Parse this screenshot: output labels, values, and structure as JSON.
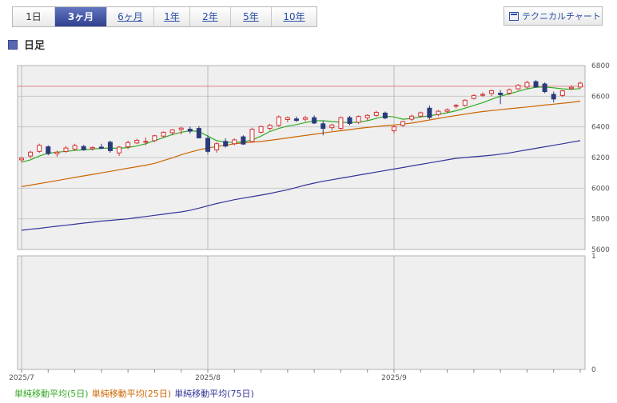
{
  "tabs": [
    {
      "label": "1日",
      "active": false,
      "link": false
    },
    {
      "label": "3ヶ月",
      "active": true,
      "link": false
    },
    {
      "label": "6ヶ月",
      "active": false,
      "link": true
    },
    {
      "label": "1年",
      "active": false,
      "link": true
    },
    {
      "label": "2年",
      "active": false,
      "link": true
    },
    {
      "label": "5年",
      "active": false,
      "link": true
    },
    {
      "label": "10年",
      "active": false,
      "link": true
    }
  ],
  "tech_button": {
    "label": "テクニカルチャート",
    "icon": "window-icon"
  },
  "section": {
    "title": "日足"
  },
  "legend": [
    {
      "label": "単純移動平均(5日)",
      "color": "#33aa22"
    },
    {
      "label": "単純移動平均(25日)",
      "color": "#cc6600"
    },
    {
      "label": "単純移動平均(75日)",
      "color": "#333399"
    }
  ],
  "colors": {
    "up": "#d23030",
    "down": "#2b3a7a",
    "ref_line": "#e08080",
    "grid": "#c8c8c8",
    "plot_bg": "#efefef"
  },
  "chart_data": {
    "type": "candlestick",
    "x_labels": [
      {
        "label": "2025/7",
        "index": 0
      },
      {
        "label": "2025/8",
        "index": 21
      },
      {
        "label": "2025/9",
        "index": 42
      }
    ],
    "price_panel": {
      "yticks": [
        5600,
        5800,
        6000,
        6200,
        6400,
        6600,
        6800
      ],
      "ylim": [
        5600,
        6800
      ],
      "reference_line": 6665,
      "candles": [
        [
          6185,
          6205,
          6170,
          6195
        ],
        [
          6210,
          6245,
          6195,
          6235
        ],
        [
          6240,
          6290,
          6230,
          6280
        ],
        [
          6270,
          6280,
          6215,
          6225
        ],
        [
          6225,
          6245,
          6205,
          6235
        ],
        [
          6240,
          6275,
          6230,
          6262
        ],
        [
          6255,
          6290,
          6245,
          6278
        ],
        [
          6272,
          6282,
          6245,
          6250
        ],
        [
          6258,
          6272,
          6245,
          6266
        ],
        [
          6268,
          6290,
          6255,
          6260
        ],
        [
          6300,
          6310,
          6232,
          6245
        ],
        [
          6230,
          6275,
          6210,
          6268
        ],
        [
          6270,
          6310,
          6255,
          6298
        ],
        [
          6295,
          6322,
          6288,
          6312
        ],
        [
          6300,
          6330,
          6280,
          6305
        ],
        [
          6310,
          6348,
          6300,
          6342
        ],
        [
          6340,
          6370,
          6330,
          6365
        ],
        [
          6362,
          6385,
          6345,
          6380
        ],
        [
          6382,
          6400,
          6350,
          6392
        ],
        [
          6385,
          6402,
          6355,
          6372
        ],
        [
          6390,
          6405,
          6325,
          6328
        ],
        [
          6325,
          6345,
          6225,
          6240
        ],
        [
          6250,
          6300,
          6232,
          6290
        ],
        [
          6305,
          6325,
          6265,
          6275
        ],
        [
          6290,
          6325,
          6280,
          6315
        ],
        [
          6335,
          6345,
          6282,
          6288
        ],
        [
          6305,
          6395,
          6298,
          6384
        ],
        [
          6365,
          6408,
          6358,
          6402
        ],
        [
          6390,
          6420,
          6378,
          6410
        ],
        [
          6410,
          6475,
          6400,
          6465
        ],
        [
          6448,
          6468,
          6430,
          6460
        ],
        [
          6452,
          6468,
          6432,
          6442
        ],
        [
          6450,
          6472,
          6435,
          6460
        ],
        [
          6460,
          6475,
          6418,
          6425
        ],
        [
          6420,
          6440,
          6345,
          6390
        ],
        [
          6395,
          6420,
          6375,
          6412
        ],
        [
          6390,
          6468,
          6380,
          6460
        ],
        [
          6460,
          6472,
          6410,
          6422
        ],
        [
          6430,
          6475,
          6418,
          6468
        ],
        [
          6460,
          6482,
          6440,
          6475
        ],
        [
          6475,
          6505,
          6465,
          6495
        ],
        [
          6490,
          6500,
          6450,
          6458
        ],
        [
          6375,
          6410,
          6358,
          6400
        ],
        [
          6410,
          6440,
          6400,
          6435
        ],
        [
          6450,
          6480,
          6438,
          6470
        ],
        [
          6470,
          6500,
          6460,
          6492
        ],
        [
          6522,
          6540,
          6450,
          6462
        ],
        [
          6480,
          6510,
          6470,
          6502
        ],
        [
          6502,
          6520,
          6490,
          6512
        ],
        [
          6535,
          6550,
          6520,
          6540
        ],
        [
          6540,
          6580,
          6532,
          6574
        ],
        [
          6585,
          6612,
          6578,
          6605
        ],
        [
          6606,
          6625,
          6595,
          6612
        ],
        [
          6618,
          6642,
          6600,
          6636
        ],
        [
          6620,
          6640,
          6548,
          6610
        ],
        [
          6620,
          6650,
          6610,
          6642
        ],
        [
          6648,
          6680,
          6640,
          6671
        ],
        [
          6660,
          6700,
          6650,
          6690
        ],
        [
          6695,
          6705,
          6655,
          6660
        ],
        [
          6680,
          6690,
          6620,
          6630
        ],
        [
          6612,
          6630,
          6560,
          6582
        ],
        [
          6605,
          6640,
          6595,
          6635
        ],
        [
          6650,
          6672,
          6640,
          6658
        ],
        [
          6660,
          6695,
          6648,
          6685
        ]
      ],
      "ma5": [
        6170,
        6185,
        6210,
        6228,
        6235,
        6240,
        6246,
        6250,
        6255,
        6260,
        6262,
        6260,
        6265,
        6275,
        6290,
        6310,
        6330,
        6350,
        6365,
        6375,
        6370,
        6340,
        6310,
        6300,
        6298,
        6302,
        6315,
        6340,
        6370,
        6390,
        6405,
        6415,
        6428,
        6440,
        6440,
        6435,
        6430,
        6428,
        6430,
        6440,
        6455,
        6470,
        6465,
        6450,
        6455,
        6465,
        6472,
        6482,
        6492,
        6505,
        6522,
        6540,
        6558,
        6580,
        6600,
        6615,
        6632,
        6648,
        6658,
        6660,
        6655,
        6648,
        6645,
        6650
      ],
      "ma25": [
        6010,
        6020,
        6030,
        6040,
        6050,
        6060,
        6070,
        6080,
        6090,
        6100,
        6110,
        6120,
        6130,
        6140,
        6150,
        6162,
        6180,
        6198,
        6218,
        6235,
        6250,
        6262,
        6272,
        6280,
        6290,
        6295,
        6300,
        6305,
        6312,
        6320,
        6328,
        6336,
        6344,
        6352,
        6360,
        6368,
        6375,
        6382,
        6390,
        6396,
        6402,
        6408,
        6412,
        6418,
        6425,
        6435,
        6445,
        6455,
        6465,
        6474,
        6483,
        6492,
        6500,
        6506,
        6512,
        6518,
        6524,
        6530,
        6536,
        6542,
        6548,
        6554,
        6560,
        6568
      ],
      "ma75": [
        5725,
        5732,
        5738,
        5745,
        5752,
        5758,
        5765,
        5772,
        5778,
        5785,
        5790,
        5795,
        5800,
        5808,
        5815,
        5823,
        5830,
        5838,
        5845,
        5855,
        5870,
        5885,
        5900,
        5912,
        5925,
        5935,
        5945,
        5955,
        5965,
        5978,
        5990,
        6005,
        6020,
        6033,
        6045,
        6055,
        6065,
        6075,
        6085,
        6095,
        6105,
        6115,
        6125,
        6135,
        6145,
        6155,
        6165,
        6175,
        6185,
        6195,
        6200,
        6205,
        6210,
        6215,
        6222,
        6230,
        6240,
        6250,
        6260,
        6270,
        6280,
        6290,
        6300,
        6310
      ]
    },
    "lower_panel": {
      "yticks": [
        0,
        1
      ],
      "ylim": [
        0,
        1
      ]
    }
  }
}
